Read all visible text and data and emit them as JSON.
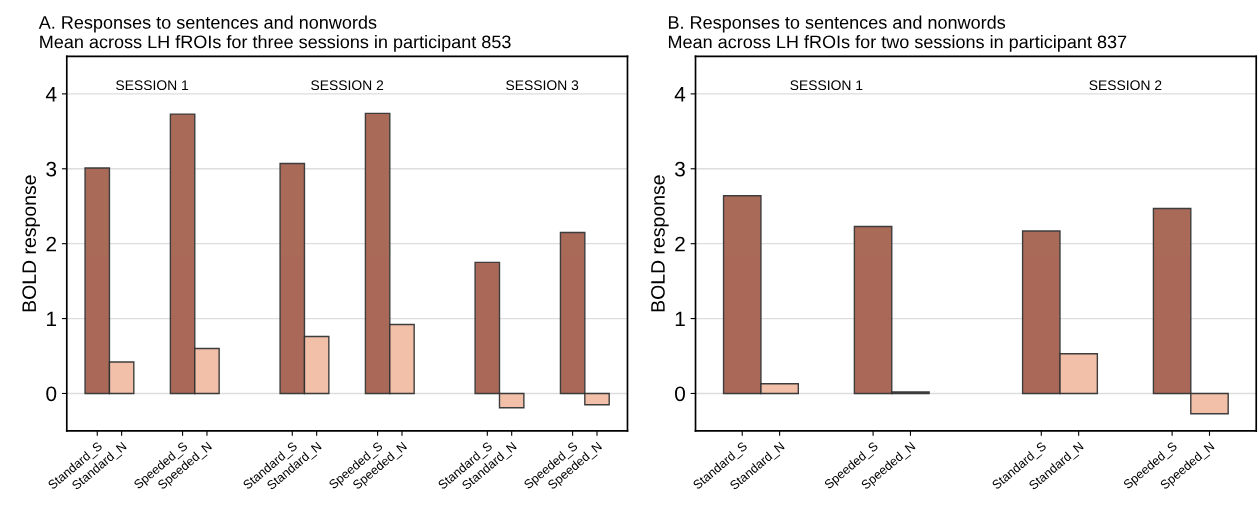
{
  "chart_data": [
    {
      "type": "bar",
      "title": "A. Responses to sentences and nonwords",
      "subtitle": "Mean across LH fROIs for three sessions in participant 853",
      "ylabel": "BOLD response",
      "categories": [
        "Standard_S",
        "Standard_N",
        "Speeded_S",
        "Speeded_N",
        "Standard_S",
        "Standard_N",
        "Speeded_S",
        "Speeded_N",
        "Standard_S",
        "Standard_N",
        "Speeded_S",
        "Speeded_N"
      ],
      "values": [
        3.01,
        0.42,
        3.73,
        0.6,
        3.07,
        0.76,
        3.74,
        0.92,
        1.75,
        -0.19,
        2.15,
        -0.15
      ],
      "colors": [
        "#a66250",
        "#f2bca5",
        "#a66250",
        "#f2bca5",
        "#a66250",
        "#f2bca5",
        "#a66250",
        "#f2bca5",
        "#a66250",
        "#f2bca5",
        "#a66250",
        "#f2bca5"
      ],
      "annotations": [
        "SESSION 1",
        "SESSION 2",
        "SESSION 3"
      ],
      "ylim": [
        -0.5,
        4.5
      ],
      "yticks": [
        0,
        1,
        2,
        3,
        4
      ],
      "grid": "y",
      "legend": false
    },
    {
      "type": "bar",
      "title": "B. Responses to sentences and nonwords",
      "subtitle": "Mean across LH fROIs for two sessions in participant 837",
      "ylabel": "BOLD response",
      "categories": [
        "Standard_S",
        "Standard_N",
        "Speeded_S",
        "Speeded_N",
        "Standard_S",
        "Standard_N",
        "Speeded_S",
        "Speeded_N"
      ],
      "values": [
        2.64,
        0.13,
        2.23,
        0.02,
        2.17,
        0.53,
        2.47,
        -0.27
      ],
      "colors": [
        "#a66250",
        "#f2bca5",
        "#a66250",
        "#f2bca5",
        "#a66250",
        "#f2bca5",
        "#a66250",
        "#f2bca5"
      ],
      "annotations": [
        "SESSION 1",
        "SESSION 2"
      ],
      "ylim": [
        -0.5,
        4.5
      ],
      "yticks": [
        0,
        1,
        2,
        3,
        4
      ],
      "grid": "y",
      "legend": false
    }
  ]
}
